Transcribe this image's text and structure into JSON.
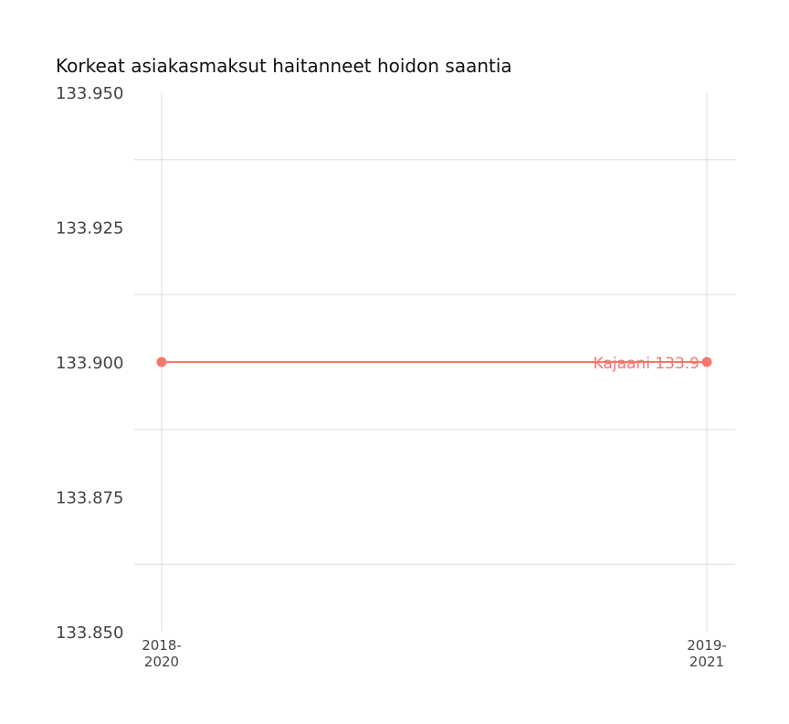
{
  "chart_data": {
    "type": "line",
    "title": "Korkeat asiakasmaksut haitanneet hoidon saantia",
    "xlabel": "",
    "ylabel": "",
    "categories": [
      [
        "2018-",
        "2020"
      ],
      [
        "2019-",
        "2021"
      ]
    ],
    "ylim": [
      133.85,
      133.95
    ],
    "yticks": [
      "133.850",
      "133.875",
      "133.900",
      "133.925",
      "133.950"
    ],
    "ytick_values": [
      133.85,
      133.875,
      133.9,
      133.925,
      133.95
    ],
    "grid": true,
    "legend": "none",
    "series": [
      {
        "values": [
          133.9,
          133.9
        ],
        "color": "#f8766d",
        "end_label": "Kajaani 133.9"
      }
    ]
  }
}
